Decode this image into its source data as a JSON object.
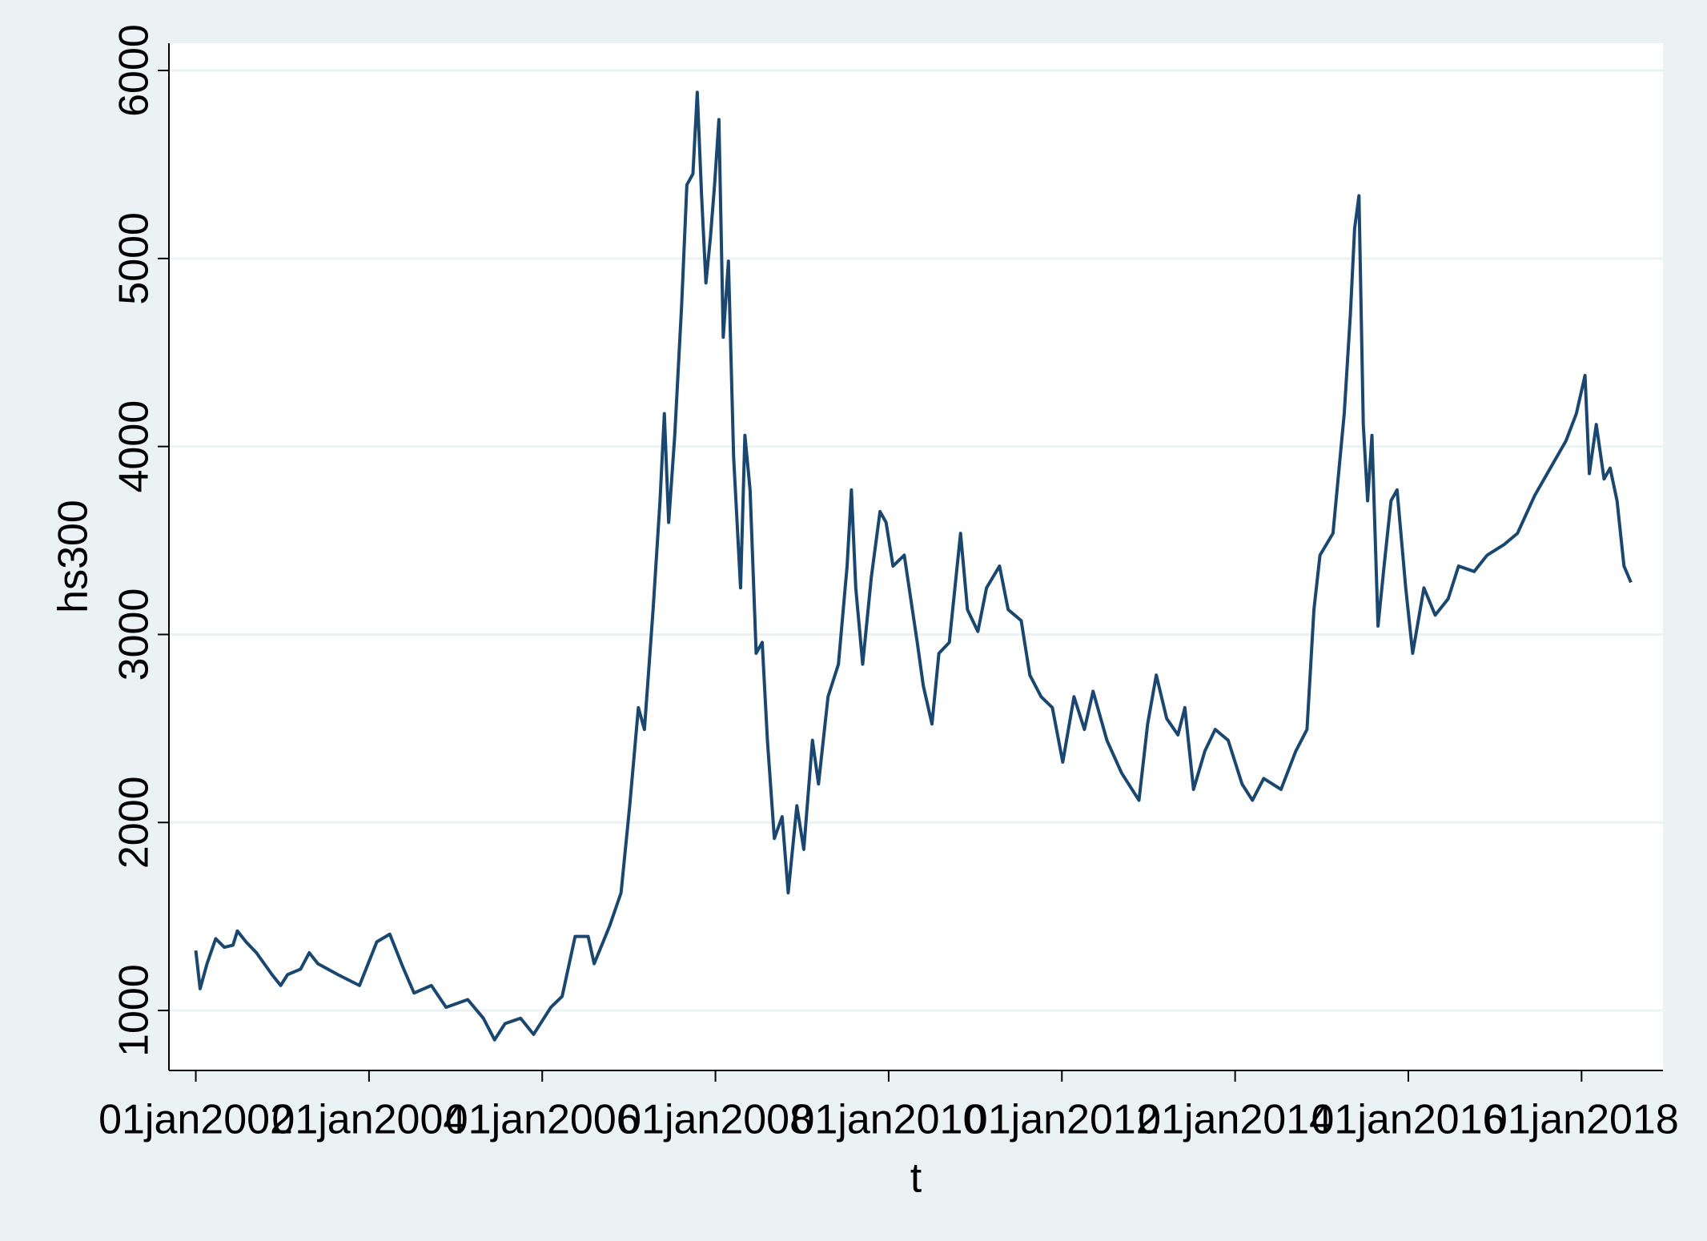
{
  "chart_data": {
    "type": "line",
    "x_label": "t",
    "y_label": "hs300",
    "xlim": [
      2001.69,
      2018.94
    ],
    "ylim": [
      681,
      6145
    ],
    "xticks": [
      {
        "value": 2002,
        "label": "01jan2002"
      },
      {
        "value": 2004,
        "label": "01jan2004"
      },
      {
        "value": 2006,
        "label": "01jan2006"
      },
      {
        "value": 2008,
        "label": "01jan2008"
      },
      {
        "value": 2010,
        "label": "01jan2010"
      },
      {
        "value": 2012,
        "label": "01jan2012"
      },
      {
        "value": 2014,
        "label": "01jan2014"
      },
      {
        "value": 2016,
        "label": "01jan2016"
      },
      {
        "value": 2018,
        "label": "01jan2018"
      }
    ],
    "yticks": [
      1000,
      2000,
      3000,
      4000,
      5000,
      6000
    ],
    "grid": true,
    "series": [
      {
        "name": "hs300",
        "color": "#1a476f",
        "x": [
          2002.0,
          2002.05,
          2002.13,
          2002.23,
          2002.33,
          2002.43,
          2002.48,
          2002.58,
          2002.7,
          2002.88,
          2002.98,
          2003.06,
          2003.21,
          2003.31,
          2003.41,
          2003.64,
          2003.89,
          2004.09,
          2004.24,
          2004.39,
          2004.52,
          2004.72,
          2004.89,
          2005.14,
          2005.32,
          2005.45,
          2005.57,
          2005.75,
          2005.9,
          2006.1,
          2006.23,
          2006.38,
          2006.53,
          2006.6,
          2006.78,
          2006.91,
          2007.01,
          2007.11,
          2007.18,
          2007.28,
          2007.36,
          2007.41,
          2007.46,
          2007.53,
          2007.61,
          2007.67,
          2007.74,
          2007.79,
          2007.84,
          2007.89,
          2007.94,
          2007.99,
          2008.04,
          2008.09,
          2008.15,
          2008.21,
          2008.29,
          2008.34,
          2008.4,
          2008.47,
          2008.54,
          2008.6,
          2008.68,
          2008.77,
          2008.84,
          2008.94,
          2009.02,
          2009.12,
          2009.19,
          2009.3,
          2009.42,
          2009.52,
          2009.57,
          2009.62,
          2009.7,
          2009.8,
          2009.9,
          2009.97,
          2010.05,
          2010.18,
          2010.33,
          2010.4,
          2010.5,
          2010.58,
          2010.7,
          2010.83,
          2010.91,
          2011.03,
          2011.13,
          2011.28,
          2011.38,
          2011.53,
          2011.63,
          2011.76,
          2011.89,
          2012.01,
          2012.14,
          2012.26,
          2012.36,
          2012.52,
          2012.69,
          2012.89,
          2012.99,
          2013.09,
          2013.21,
          2013.34,
          2013.42,
          2013.52,
          2013.65,
          2013.77,
          2013.92,
          2014.08,
          2014.2,
          2014.33,
          2014.53,
          2014.7,
          2014.83,
          2014.91,
          2014.98,
          2015.13,
          2015.26,
          2015.33,
          2015.38,
          2015.43,
          2015.48,
          2015.53,
          2015.58,
          2015.65,
          2015.72,
          2015.8,
          2015.87,
          2015.97,
          2016.05,
          2016.18,
          2016.31,
          2016.46,
          2016.58,
          2016.76,
          2016.91,
          2017.11,
          2017.26,
          2017.46,
          2017.64,
          2017.82,
          2017.94,
          2018.04,
          2018.09,
          2018.17,
          2018.26,
          2018.33,
          2018.41,
          2018.49,
          2018.57
        ],
        "values": [
          1319,
          1116,
          1249,
          1382,
          1336,
          1348,
          1423,
          1365,
          1307,
          1191,
          1133,
          1191,
          1220,
          1307,
          1249,
          1191,
          1133,
          1365,
          1406,
          1232,
          1093,
          1133,
          1017,
          1058,
          959,
          844,
          930,
          959,
          873,
          1017,
          1075,
          1394,
          1394,
          1249,
          1452,
          1626,
          2089,
          2611,
          2495,
          3132,
          3711,
          4175,
          3596,
          4059,
          4754,
          5392,
          5450,
          5884,
          5334,
          4870,
          5102,
          5392,
          5739,
          4581,
          4986,
          3943,
          3248,
          4059,
          3769,
          2900,
          2958,
          2437,
          1915,
          2031,
          1626,
          2089,
          1857,
          2437,
          2205,
          2669,
          2842,
          3364,
          3769,
          3248,
          2842,
          3306,
          3654,
          3596,
          3364,
          3422,
          2958,
          2727,
          2524,
          2900,
          2958,
          3538,
          3132,
          3016,
          3248,
          3364,
          3132,
          3074,
          2784,
          2669,
          2611,
          2321,
          2669,
          2495,
          2698,
          2437,
          2263,
          2118,
          2524,
          2784,
          2553,
          2466,
          2611,
          2176,
          2379,
          2495,
          2437,
          2205,
          2118,
          2234,
          2176,
          2379,
          2495,
          3132,
          3422,
          3538,
          4175,
          4696,
          5160,
          5334,
          4117,
          3711,
          4059,
          3045,
          3364,
          3711,
          3769,
          3248,
          2900,
          3248,
          3103,
          3190,
          3364,
          3335,
          3422,
          3480,
          3538,
          3740,
          3885,
          4030,
          4175,
          4378,
          3856,
          4117,
          3827,
          3885,
          3711,
          3364,
          3277
        ]
      }
    ]
  }
}
